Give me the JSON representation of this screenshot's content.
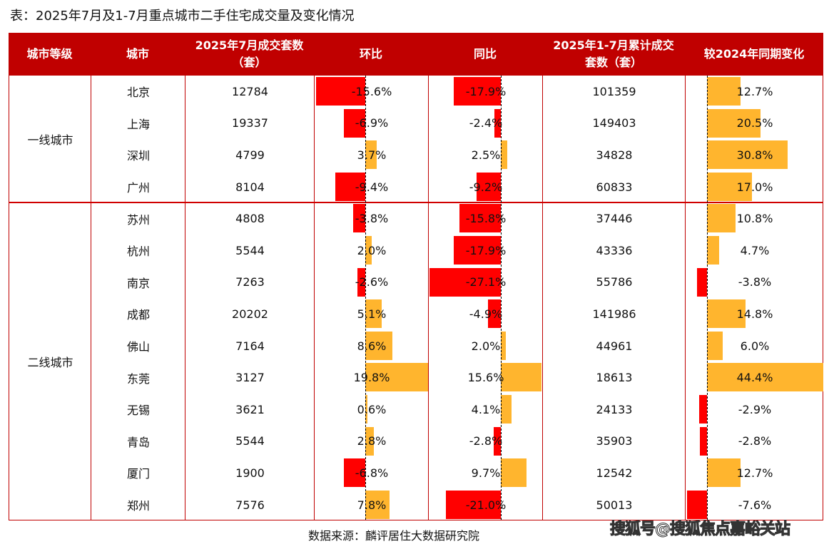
{
  "title": "表：2025年7月及1-7月重点城市二手住宅成交量及变化情况",
  "headers": [
    "城市等级",
    "城市",
    "2025年7月成交套数（套）",
    "环比",
    "同比",
    "2025年1-7月累计成交套数（套）",
    "较2024年同期变化"
  ],
  "groups": [
    {
      "label": "一线城市",
      "rows": 4
    },
    {
      "label": "二线城市",
      "rows": 10
    }
  ],
  "rows": [
    {
      "city": "北京",
      "july": "12784",
      "mom": -15.6,
      "yoy": -17.9,
      "ytd": "101359",
      "chg": 12.7
    },
    {
      "city": "上海",
      "july": "19337",
      "mom": -6.9,
      "yoy": -2.4,
      "ytd": "149403",
      "chg": 20.5
    },
    {
      "city": "深圳",
      "july": "4799",
      "mom": 3.7,
      "yoy": 2.5,
      "ytd": "34828",
      "chg": 30.8
    },
    {
      "city": "广州",
      "july": "8104",
      "mom": -9.4,
      "yoy": -9.2,
      "ytd": "60833",
      "chg": 17.0
    },
    {
      "city": "苏州",
      "july": "4808",
      "mom": -3.8,
      "yoy": -15.8,
      "ytd": "37446",
      "chg": 10.8
    },
    {
      "city": "杭州",
      "july": "5544",
      "mom": 2.0,
      "yoy": -17.9,
      "ytd": "43336",
      "chg": 4.7
    },
    {
      "city": "南京",
      "july": "7263",
      "mom": -2.6,
      "yoy": -27.1,
      "ytd": "55786",
      "chg": -3.8
    },
    {
      "city": "成都",
      "july": "20202",
      "mom": 5.1,
      "yoy": -4.9,
      "ytd": "141986",
      "chg": 14.8
    },
    {
      "city": "佛山",
      "july": "7164",
      "mom": 8.6,
      "yoy": 2.0,
      "ytd": "44961",
      "chg": 6.0
    },
    {
      "city": "东莞",
      "july": "3127",
      "mom": 19.8,
      "yoy": 15.6,
      "ytd": "18613",
      "chg": 44.4
    },
    {
      "city": "无锡",
      "july": "3621",
      "mom": 0.6,
      "yoy": 4.1,
      "ytd": "24133",
      "chg": -2.9
    },
    {
      "city": "青岛",
      "july": "5544",
      "mom": 2.8,
      "yoy": -2.8,
      "ytd": "35903",
      "chg": -2.8
    },
    {
      "city": "厦门",
      "july": "1900",
      "mom": -6.8,
      "yoy": 9.7,
      "ytd": "12542",
      "chg": 12.7
    },
    {
      "city": "郑州",
      "july": "7576",
      "mom": 7.8,
      "yoy": -21.0,
      "ytd": "50013",
      "chg": -7.6
    }
  ],
  "colors": {
    "header": "#c00000",
    "negative": "#ff0000",
    "positive": "#ffb52e"
  },
  "source": "数据来源：麟评居住大数据研究院",
  "watermark": "搜狐号@搜狐焦点嘉峪关站"
}
